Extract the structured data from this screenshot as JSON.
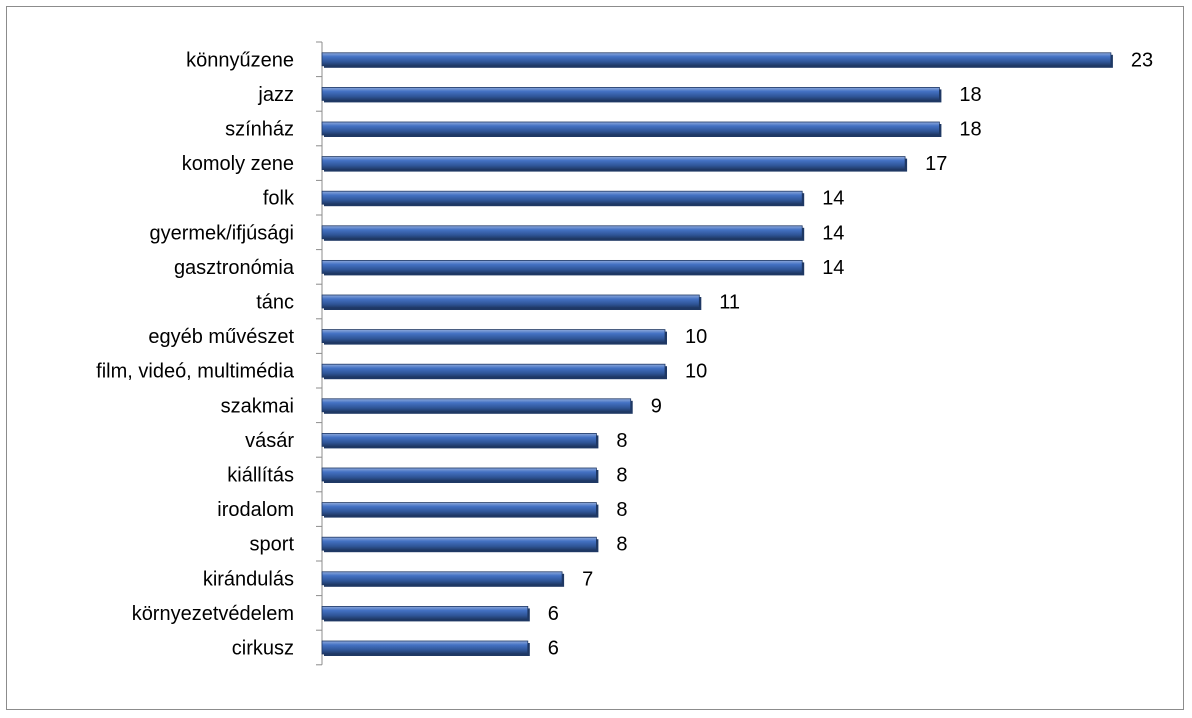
{
  "chart_data": {
    "type": "bar",
    "orientation": "horizontal",
    "categories": [
      "könnyűzene",
      "jazz",
      "színház",
      "komoly zene",
      "folk",
      "gyermek/ifjúsági",
      "gasztronómia",
      "tánc",
      "egyéb művészet",
      "film, videó, multimédia",
      "szakmai",
      "vásár",
      "kiállítás",
      "irodalom",
      "sport",
      "kirándulás",
      "környezetvédelem",
      "cirkusz"
    ],
    "values": [
      23,
      18,
      18,
      17,
      14,
      14,
      14,
      11,
      10,
      10,
      9,
      8,
      8,
      8,
      8,
      7,
      6,
      6
    ],
    "data_labels": [
      "23",
      "18",
      "18",
      "17",
      "14",
      "14",
      "14",
      "11",
      "10",
      "10",
      "9",
      "8",
      "8",
      "8",
      "8",
      "7",
      "6",
      "6"
    ],
    "xlim": [
      0,
      24
    ],
    "grid": false,
    "legend": "none",
    "bar_color": "#2f5597"
  }
}
